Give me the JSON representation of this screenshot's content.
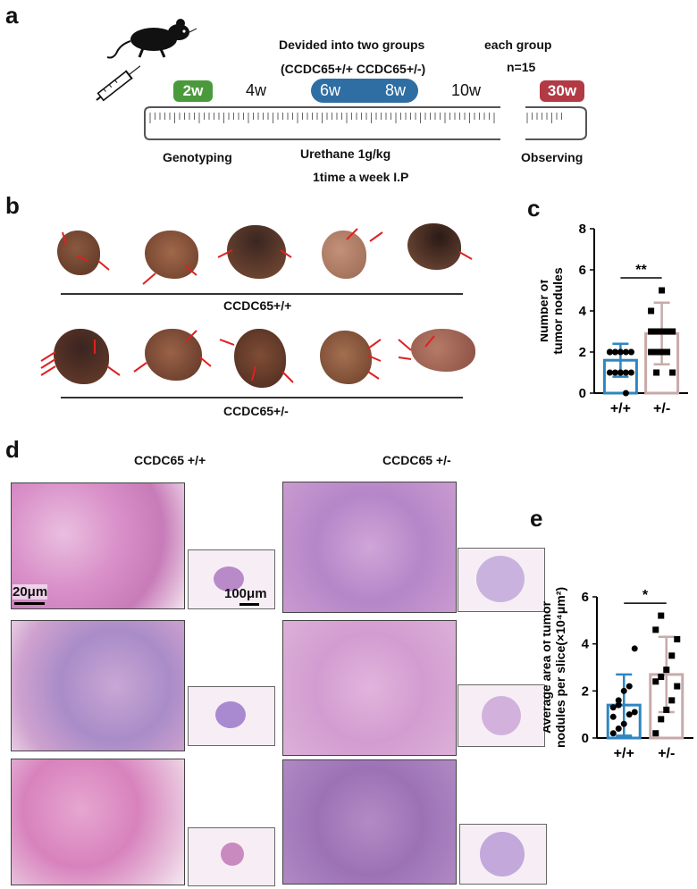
{
  "panels": {
    "a": "a",
    "b": "b",
    "c": "c",
    "d": "d",
    "e": "e"
  },
  "timeline": {
    "groups_line1": "Devided into two groups",
    "groups_line2": "(CCDC65+/+ CCDC65+/-)",
    "each_group": "each group",
    "n": "n=15",
    "ticks": {
      "w2": "2w",
      "w4": "4w",
      "w6": "6w",
      "w8": "8w",
      "w10": "10w",
      "w30": "30w"
    },
    "genotyping": "Genotyping",
    "urethane": "Urethane 1g/kg",
    "schedule": "1time a week  I.P",
    "observing": "Observing",
    "colors": {
      "w2": "#4a9a3b",
      "w68": "#2f6ea3",
      "w30": "#b23a45"
    }
  },
  "livers": {
    "row1_label": "CCDC65+/+",
    "row2_label": "CCDC65+/-"
  },
  "histology": {
    "col1_title": "CCDC65 +/+",
    "col2_title": "CCDC65 +/-",
    "scale_small": "20μm",
    "scale_large": "100μm"
  },
  "chart_c": {
    "type": "bar",
    "ylabel_line1": "Number of",
    "ylabel_line2": "tumor nodules",
    "categories": [
      "+/+",
      "+/-"
    ],
    "values": [
      1.6,
      2.9
    ],
    "errors": [
      0.8,
      1.5
    ],
    "ylim": [
      0,
      8
    ],
    "yticks": [
      "0",
      "2",
      "4",
      "6",
      "8"
    ],
    "significance": "**",
    "points": [
      [
        1,
        1,
        1,
        1,
        1,
        2,
        2,
        2,
        2,
        2,
        2,
        2,
        1,
        0,
        2
      ],
      [
        2,
        2,
        2,
        3,
        3,
        3,
        3,
        3,
        3,
        3,
        4,
        1,
        5,
        2,
        1
      ]
    ],
    "colors": [
      "#2e86c1",
      "#c8aaaa"
    ]
  },
  "chart_e": {
    "type": "bar",
    "ylabel_line1": "Average area of tumor",
    "ylabel_line2": "nodules per slice(×10⁴μm²)",
    "categories": [
      "+/+",
      "+/-"
    ],
    "values": [
      1.4,
      2.7
    ],
    "errors": [
      1.3,
      1.6
    ],
    "ylim": [
      0,
      6
    ],
    "yticks": [
      "0",
      "2",
      "4",
      "6"
    ],
    "significance": "*",
    "points": [
      [
        0.2,
        0.4,
        0.6,
        1.0,
        1.1,
        1.3,
        1.6,
        2.0,
        2.2,
        3.8,
        0.9,
        1.4
      ],
      [
        0.2,
        0.8,
        1.2,
        1.6,
        2.2,
        2.4,
        2.6,
        2.9,
        3.5,
        4.2,
        4.6,
        5.2
      ]
    ],
    "colors": [
      "#2e86c1",
      "#c8aaaa"
    ]
  },
  "chart_data": [
    {
      "type": "bar",
      "categories": [
        "+/+",
        "+/-"
      ],
      "values": [
        1.6,
        2.9
      ],
      "ylabel": "Number of tumor nodules",
      "ylim": [
        0,
        8
      ]
    },
    {
      "type": "bar",
      "categories": [
        "+/+",
        "+/-"
      ],
      "values": [
        1.4,
        2.7
      ],
      "ylabel": "Average area of tumor nodules per slice(×10⁴μm²)",
      "ylim": [
        0,
        6
      ]
    }
  ]
}
